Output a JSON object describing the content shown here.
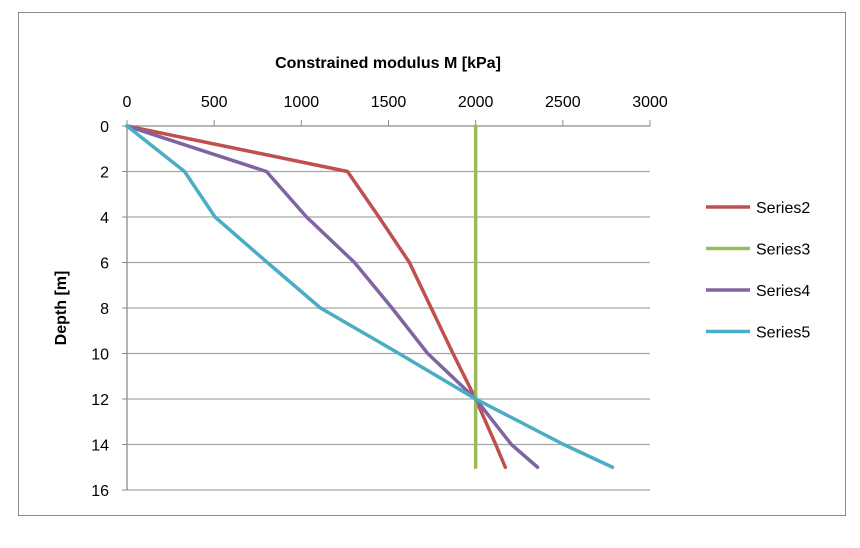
{
  "chart_data": {
    "type": "line",
    "title": "",
    "xlabel": "Constrained modulus M [kPa]",
    "ylabel": "Depth [m]",
    "xlim": [
      0,
      3000
    ],
    "ylim": [
      0,
      16
    ],
    "y_inverted": true,
    "x_axis_position": "top",
    "xticks": [
      0,
      500,
      1000,
      1500,
      2000,
      2500,
      3000
    ],
    "yticks": [
      0,
      2,
      4,
      6,
      8,
      10,
      12,
      14,
      16
    ],
    "grid": "horizontal",
    "legend": "right",
    "series": [
      {
        "name": "Series2",
        "color": "#c0504d",
        "points": [
          [
            0,
            0
          ],
          [
            1265,
            2
          ],
          [
            1445,
            4
          ],
          [
            1620,
            6
          ],
          [
            1745,
            8
          ],
          [
            1870,
            10
          ],
          [
            2000,
            12
          ],
          [
            2115,
            14
          ],
          [
            2170,
            15
          ]
        ]
      },
      {
        "name": "Series3",
        "color": "#9bbb59",
        "points": [
          [
            2000,
            0
          ],
          [
            2000,
            15
          ]
        ]
      },
      {
        "name": "Series4",
        "color": "#8064a2",
        "points": [
          [
            0,
            0
          ],
          [
            800,
            2
          ],
          [
            1030,
            4
          ],
          [
            1305,
            6
          ],
          [
            1520,
            8
          ],
          [
            1725,
            10
          ],
          [
            2000,
            12
          ],
          [
            2205,
            14
          ],
          [
            2355,
            15
          ]
        ]
      },
      {
        "name": "Series5",
        "color": "#4bacc6",
        "points": [
          [
            0,
            0
          ],
          [
            330,
            2
          ],
          [
            505,
            4
          ],
          [
            805,
            6
          ],
          [
            1110,
            8
          ],
          [
            1560,
            10
          ],
          [
            2000,
            12
          ],
          [
            2505,
            14
          ],
          [
            2785,
            15
          ]
        ]
      }
    ]
  }
}
